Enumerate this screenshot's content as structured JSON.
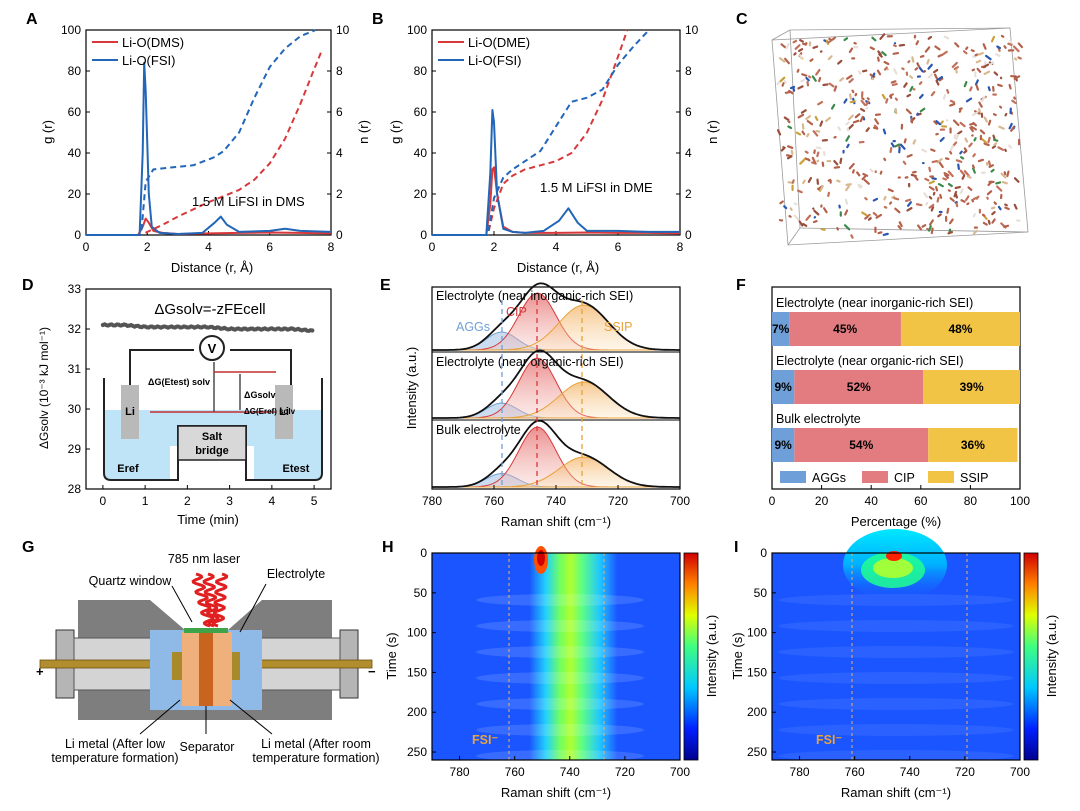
{
  "panels": {
    "A": {
      "letter": "A",
      "legend": [
        "Li-O(DMS)",
        "Li-O(FSI)"
      ],
      "annotation": "1.5 M LiFSI in DMS",
      "xlabel": "Distance (r, Å)",
      "ylabel_left": "g (r)",
      "ylabel_right": "n (r)",
      "xticks": [
        "0",
        "2",
        "4",
        "6",
        "8"
      ],
      "yticks_left": [
        "0",
        "20",
        "40",
        "60",
        "80",
        "100"
      ],
      "yticks_right": [
        "0",
        "2",
        "4",
        "6",
        "8",
        "10"
      ]
    },
    "B": {
      "letter": "B",
      "legend": [
        "Li-O(DME)",
        "Li-O(FSI)"
      ],
      "annotation": "1.5 M LiFSI in DME",
      "xlabel": "Distance (r, Å)",
      "ylabel_left": "g (r)",
      "ylabel_right": "n (r)",
      "xticks": [
        "0",
        "2",
        "4",
        "6",
        "8"
      ],
      "yticks_left": [
        "0",
        "20",
        "40",
        "60",
        "80",
        "100"
      ],
      "yticks_right": [
        "0",
        "2",
        "4",
        "6",
        "8",
        "10"
      ]
    },
    "C": {
      "letter": "C"
    },
    "D": {
      "letter": "D",
      "equation": "ΔGsolv=-zFEcell",
      "xlabel": "Time (min)",
      "ylabel": "ΔGsolv (10⁻³ kJ mol⁻¹)",
      "xticks": [
        "0",
        "1",
        "2",
        "3",
        "4",
        "5"
      ],
      "yticks": [
        "28",
        "29",
        "30",
        "31",
        "32",
        "33"
      ],
      "voltmeter": "V",
      "electrode_left": "Li",
      "electrode_right": "Li",
      "salt_bridge": [
        "Salt",
        "bridge"
      ],
      "e_ref": "Eref",
      "e_test": "Etest",
      "dg_labels": [
        "ΔG(Etest) solv",
        "ΔGsolv",
        "ΔG(Eref) solv"
      ]
    },
    "E": {
      "letter": "E",
      "xlabel": "Raman shift (cm⁻¹)",
      "ylabel": "Intensity (a.u.)",
      "xticks": [
        "780",
        "760",
        "740",
        "720",
        "700"
      ],
      "traces": [
        "Electrolyte (near inorganic-rich SEI)",
        "Electrolyte (near organic-rich SEI)",
        "Bulk electrolyte"
      ],
      "peak_labels": [
        "AGGs",
        "CIP",
        "SSIP"
      ]
    },
    "F": {
      "letter": "F",
      "xlabel": "Percentage (%)",
      "xticks": [
        "0",
        "20",
        "40",
        "60",
        "80",
        "100"
      ],
      "legend": [
        "AGGs",
        "CIP",
        "SSIP"
      ]
    },
    "G": {
      "letter": "G",
      "labels": {
        "laser": "785 nm laser",
        "window": "Quartz window",
        "electrolyte": "Electrolyte",
        "li_low": [
          "Li metal (After low",
          "temperature formation)"
        ],
        "separator": "Separator",
        "li_room": [
          "Li metal (After room",
          "temperature formation)"
        ],
        "plus": "+",
        "minus": "−"
      }
    },
    "H": {
      "letter": "H",
      "xlabel": "Raman shift (cm⁻¹)",
      "ylabel": "Time (s)",
      "cbar": "Intensity (a.u.)",
      "fsi": "FSI⁻",
      "xticks": [
        "780",
        "760",
        "740",
        "720",
        "700"
      ],
      "yticks": [
        "0",
        "50",
        "100",
        "150",
        "200",
        "250"
      ]
    },
    "I": {
      "letter": "I",
      "xlabel": "Raman shift (cm⁻¹)",
      "ylabel": "Time (s)",
      "cbar": "Intensity (a.u.)",
      "fsi": "FSI⁻",
      "xticks": [
        "780",
        "760",
        "740",
        "720",
        "700"
      ],
      "yticks": [
        "0",
        "50",
        "100",
        "150",
        "200",
        "250"
      ]
    }
  },
  "colors": {
    "red": "#d9383a",
    "blue": "#2266b8",
    "orange": "#e8a23a",
    "agg": "#6f9fd8",
    "cip": "#e27c80",
    "ssip": "#f2c445"
  },
  "chart_data": [
    {
      "id": "A",
      "type": "line",
      "xlim": [
        0,
        8
      ],
      "ylim": [
        0,
        100
      ],
      "y2lim": [
        0,
        10
      ],
      "series": [
        {
          "name": "Li-O(DMS) g(r)",
          "axis": "left",
          "x": [
            0,
            1.7,
            1.85,
            1.95,
            2.05,
            2.2,
            2.5,
            3,
            4,
            5,
            6,
            7,
            8
          ],
          "y": [
            0,
            0,
            4,
            8,
            6,
            2,
            1,
            0.5,
            0.8,
            1,
            1.2,
            1,
            0.8
          ]
        },
        {
          "name": "Li-O(FSI) g(r)",
          "axis": "left",
          "x": [
            0,
            1.75,
            1.85,
            1.9,
            1.95,
            2.05,
            2.15,
            2.4,
            3,
            3.8,
            4.2,
            4.4,
            4.6,
            5,
            6,
            6.5,
            7,
            8
          ],
          "y": [
            0,
            0,
            40,
            84,
            70,
            20,
            4,
            1,
            0.5,
            1,
            6,
            9,
            5,
            1.5,
            2,
            3,
            2,
            1.5
          ]
        },
        {
          "name": "Li-O(DMS) n(r)",
          "axis": "right",
          "x": [
            0,
            1.8,
            2,
            2.5,
            3,
            4,
            5,
            5.5,
            6,
            6.5,
            7,
            7.4,
            7.7
          ],
          "y": [
            0,
            0,
            0.15,
            0.5,
            0.9,
            1.6,
            2.2,
            2.7,
            3.5,
            4.7,
            6.4,
            7.9,
            9
          ]
        },
        {
          "name": "Li-O(FSI) n(r)",
          "axis": "right",
          "x": [
            0,
            1.8,
            1.95,
            2.2,
            2.8,
            3.5,
            4.2,
            4.5,
            5,
            5.5,
            6,
            6.5,
            7,
            7.5
          ],
          "y": [
            0,
            0,
            2.6,
            3.2,
            3.3,
            3.4,
            3.8,
            4.1,
            5,
            6.7,
            8.2,
            9.1,
            9.7,
            10
          ]
        }
      ]
    },
    {
      "id": "B",
      "type": "line",
      "xlim": [
        0,
        8
      ],
      "ylim": [
        0,
        100
      ],
      "y2lim": [
        0,
        10
      ],
      "series": [
        {
          "name": "Li-O(DME) g(r)",
          "axis": "left",
          "x": [
            0,
            1.75,
            1.88,
            1.95,
            2.0,
            2.1,
            2.3,
            2.6,
            3,
            4,
            5,
            6,
            7,
            8
          ],
          "y": [
            0,
            0,
            15,
            32,
            33,
            20,
            4,
            1.5,
            1,
            1,
            1.2,
            1,
            1,
            0.8
          ]
        },
        {
          "name": "Li-O(FSI) g(r)",
          "axis": "left",
          "x": [
            0,
            1.75,
            1.88,
            1.95,
            2.0,
            2.1,
            2.3,
            2.6,
            3,
            3.6,
            4.1,
            4.4,
            4.7,
            5,
            6,
            7,
            8
          ],
          "y": [
            0,
            0,
            30,
            61,
            55,
            20,
            3,
            1.5,
            1,
            2,
            7,
            13,
            6,
            2,
            2,
            1.5,
            1.5
          ]
        },
        {
          "name": "Li-O(DME) n(r)",
          "axis": "right",
          "x": [
            0,
            1.8,
            2,
            2.3,
            2.6,
            3,
            3.5,
            4,
            4.5,
            5,
            5.5,
            6,
            6.3
          ],
          "y": [
            0,
            0,
            1.3,
            2.5,
            2.9,
            3.2,
            3.4,
            3.6,
            4,
            5,
            6.6,
            8.7,
            10
          ]
        },
        {
          "name": "Li-O(FSI) n(r)",
          "axis": "right",
          "x": [
            0,
            1.8,
            2,
            2.3,
            2.6,
            3,
            3.5,
            4,
            4.5,
            5,
            5.5,
            6,
            6.5,
            7
          ],
          "y": [
            0,
            0,
            1.8,
            2.8,
            3.2,
            3.6,
            4.1,
            5.3,
            6.5,
            6.7,
            7.1,
            8.3,
            9.2,
            10
          ]
        }
      ]
    },
    {
      "id": "D",
      "type": "scatter",
      "xlabel": "Time (min)",
      "xlim": [
        -0.4,
        5.4
      ],
      "ylim": [
        28,
        33
      ],
      "series": [
        {
          "name": "ΔGsolv",
          "x": [
            0,
            0.5,
            1,
            1.5,
            2,
            2.5,
            3,
            3.5,
            4,
            4.5,
            5
          ],
          "y": [
            32.1,
            32.1,
            32.05,
            32.05,
            32.05,
            32.05,
            32.0,
            32.0,
            32.0,
            32.0,
            31.95
          ]
        }
      ]
    },
    {
      "id": "F",
      "type": "bar",
      "orientation": "horizontal",
      "xlim": [
        0,
        100
      ],
      "categories": [
        "Electrolyte (near inorganic-rich SEI)",
        "Electrolyte (near organic-rich SEI)",
        "Bulk electrolyte"
      ],
      "series": [
        {
          "name": "AGGs",
          "values": [
            7,
            9,
            9
          ]
        },
        {
          "name": "CIP",
          "values": [
            45,
            52,
            54
          ]
        },
        {
          "name": "SSIP",
          "values": [
            48,
            39,
            36
          ]
        }
      ],
      "value_labels": [
        [
          "7%",
          "45%",
          "48%"
        ],
        [
          "9%",
          "52%",
          "39%"
        ],
        [
          "9%",
          "54%",
          "36%"
        ]
      ]
    }
  ]
}
